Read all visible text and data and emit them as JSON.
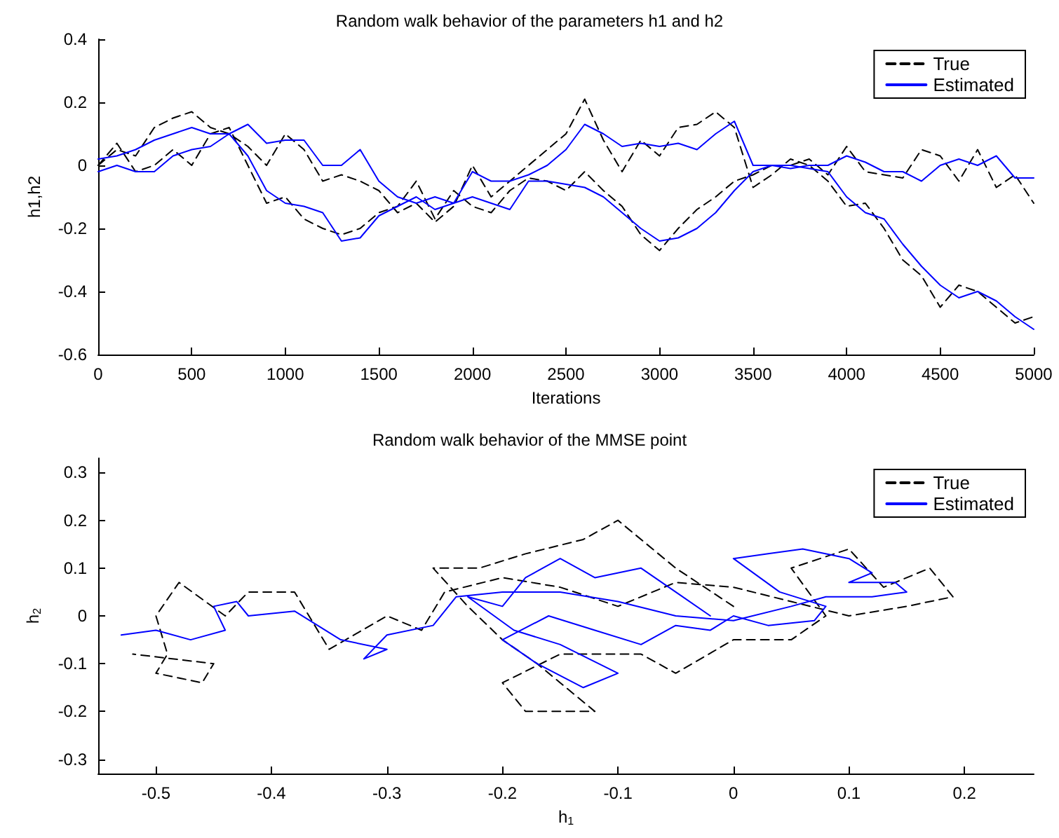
{
  "chart_data": [
    {
      "type": "line",
      "title": "Random walk behavior of the parameters h1 and h2",
      "xlabel": "Iterations",
      "ylabel": "h1,h2",
      "xlim": [
        0,
        5000
      ],
      "xticks": [
        0,
        500,
        1000,
        1500,
        2000,
        2500,
        3000,
        3500,
        4000,
        4500,
        5000
      ],
      "ylim": [
        -0.6,
        0.4
      ],
      "yticks": [
        -0.6,
        -0.4,
        -0.2,
        0,
        0.2,
        0.4
      ],
      "grid": false,
      "legend": "top right",
      "marker": "none",
      "x": [
        0,
        100,
        200,
        300,
        400,
        500,
        600,
        700,
        800,
        900,
        1000,
        1100,
        1200,
        1300,
        1400,
        1500,
        1600,
        1700,
        1800,
        1900,
        2000,
        2100,
        2200,
        2300,
        2400,
        2500,
        2600,
        2700,
        2800,
        2900,
        3000,
        3100,
        3200,
        3300,
        3400,
        3500,
        3600,
        3700,
        3800,
        3900,
        4000,
        4100,
        4200,
        4300,
        4400,
        4500,
        4600,
        4700,
        4800,
        4900,
        5000
      ],
      "series": [
        {
          "name": "True",
          "color": "#000000",
          "line_style": "dashed",
          "values": [
            0.0,
            0.05,
            0.03,
            0.12,
            0.15,
            0.17,
            0.12,
            0.1,
            0.06,
            0.0,
            0.1,
            0.05,
            -0.05,
            -0.03,
            -0.05,
            -0.08,
            -0.15,
            -0.12,
            -0.18,
            -0.13,
            0.0,
            -0.1,
            -0.05,
            0.0,
            0.05,
            0.1,
            0.21,
            0.08,
            -0.02,
            0.08,
            0.03,
            0.12,
            0.13,
            0.17,
            0.12,
            -0.07,
            -0.03,
            0.02,
            0.0,
            -0.05,
            -0.13,
            -0.12,
            -0.2,
            -0.3,
            -0.35,
            -0.45,
            -0.38,
            -0.4,
            -0.45,
            -0.5,
            -0.48
          ]
        },
        {
          "color": "#000000",
          "line_style": "dashed",
          "values": [
            0.0,
            0.07,
            -0.02,
            0.0,
            0.05,
            0.0,
            0.1,
            0.12,
            0.0,
            -0.12,
            -0.1,
            -0.17,
            -0.2,
            -0.22,
            -0.2,
            -0.15,
            -0.13,
            -0.05,
            -0.17,
            -0.08,
            -0.13,
            -0.15,
            -0.08,
            -0.04,
            -0.05,
            -0.08,
            -0.02,
            -0.08,
            -0.13,
            -0.22,
            -0.27,
            -0.2,
            -0.14,
            -0.1,
            -0.05,
            -0.03,
            0.0,
            0.0,
            0.02,
            -0.03,
            0.06,
            -0.02,
            -0.03,
            -0.04,
            0.05,
            0.03,
            -0.05,
            0.05,
            -0.07,
            -0.03,
            -0.12
          ]
        },
        {
          "name": "Estimated",
          "color": "#0000ff",
          "line_style": "solid",
          "values": [
            0.02,
            0.03,
            0.05,
            0.08,
            0.1,
            0.12,
            0.1,
            0.1,
            0.13,
            0.07,
            0.08,
            0.08,
            0.0,
            0.0,
            0.05,
            -0.05,
            -0.1,
            -0.12,
            -0.1,
            -0.12,
            -0.02,
            -0.05,
            -0.05,
            -0.03,
            0.0,
            0.05,
            0.13,
            0.1,
            0.06,
            0.07,
            0.06,
            0.07,
            0.05,
            0.1,
            0.14,
            0.0,
            0.0,
            0.0,
            -0.01,
            -0.02,
            -0.1,
            -0.15,
            -0.17,
            -0.25,
            -0.32,
            -0.38,
            -0.42,
            -0.4,
            -0.43,
            -0.48,
            -0.52
          ]
        },
        {
          "color": "#0000ff",
          "line_style": "solid",
          "values": [
            -0.02,
            0.0,
            -0.02,
            -0.02,
            0.03,
            0.05,
            0.06,
            0.1,
            0.03,
            -0.08,
            -0.12,
            -0.13,
            -0.15,
            -0.24,
            -0.23,
            -0.16,
            -0.13,
            -0.1,
            -0.14,
            -0.12,
            -0.1,
            -0.12,
            -0.14,
            -0.05,
            -0.05,
            -0.06,
            -0.07,
            -0.1,
            -0.15,
            -0.2,
            -0.24,
            -0.23,
            -0.2,
            -0.15,
            -0.08,
            -0.02,
            0.0,
            -0.01,
            0.0,
            0.0,
            0.03,
            0.01,
            -0.02,
            -0.02,
            -0.05,
            0.0,
            0.02,
            0.0,
            0.03,
            -0.04,
            -0.04
          ]
        }
      ]
    },
    {
      "type": "line",
      "title": "Random walk behavior of the MMSE point",
      "xlabel": "h$_{1}$",
      "ylabel": "h$_{2}$",
      "xlim": [
        -0.55,
        0.26
      ],
      "xticks": [
        -0.5,
        -0.4,
        -0.3,
        -0.2,
        -0.1,
        0,
        0.1,
        0.2
      ],
      "ylim": [
        -0.33,
        0.33
      ],
      "yticks": [
        -0.3,
        -0.2,
        -0.1,
        0,
        0.1,
        0.2,
        0.3
      ],
      "grid": false,
      "legend": "top right",
      "marker": "none",
      "series": [
        {
          "name": "True",
          "color": "#000000",
          "line_style": "dashed",
          "x": [
            0,
            -0.05,
            -0.1,
            -0.13,
            -0.18,
            -0.22,
            -0.26,
            -0.23,
            -0.2,
            -0.17,
            -0.12,
            -0.18,
            -0.2,
            -0.15,
            -0.08,
            -0.05,
            0.0,
            0.05,
            0.08,
            0.05,
            0.1,
            0.13,
            0.17,
            0.19,
            0.15,
            0.1,
            0.05,
            0.0,
            -0.05,
            -0.1,
            -0.15,
            -0.2,
            -0.25,
            -0.27,
            -0.3,
            -0.35,
            -0.38,
            -0.42,
            -0.44,
            -0.48,
            -0.5,
            -0.49,
            -0.5,
            -0.46,
            -0.45,
            -0.52
          ],
          "values": [
            0.02,
            0.1,
            0.2,
            0.16,
            0.13,
            0.1,
            0.1,
            0.02,
            -0.05,
            -0.1,
            -0.2,
            -0.2,
            -0.14,
            -0.08,
            -0.08,
            -0.12,
            -0.05,
            -0.05,
            0.0,
            0.1,
            0.14,
            0.06,
            0.1,
            0.04,
            0.02,
            0.0,
            0.03,
            0.06,
            0.07,
            0.02,
            0.06,
            0.08,
            0.05,
            -0.03,
            0.0,
            -0.07,
            0.05,
            0.05,
            0.0,
            0.07,
            0.0,
            -0.08,
            -0.12,
            -0.14,
            -0.1,
            -0.08
          ]
        },
        {
          "name": "Estimated",
          "color": "#0000ff",
          "line_style": "solid",
          "x": [
            -0.02,
            -0.05,
            -0.08,
            -0.12,
            -0.15,
            -0.18,
            -0.2,
            -0.23,
            -0.19,
            -0.15,
            -0.1,
            -0.13,
            -0.17,
            -0.2,
            -0.16,
            -0.12,
            -0.08,
            -0.05,
            -0.02,
            0.0,
            0.03,
            0.07,
            0.08,
            0.04,
            0.0,
            0.03,
            0.06,
            0.1,
            0.12,
            0.1,
            0.14,
            0.15,
            0.12,
            0.08,
            0.05,
            0.0,
            -0.05,
            -0.1,
            -0.15,
            -0.2,
            -0.24,
            -0.26,
            -0.3,
            -0.32,
            -0.3,
            -0.34,
            -0.36,
            -0.38,
            -0.42,
            -0.43,
            -0.45,
            -0.44,
            -0.47,
            -0.5,
            -0.53
          ],
          "values": [
            0.0,
            0.05,
            0.1,
            0.08,
            0.12,
            0.08,
            0.02,
            0.04,
            -0.03,
            -0.06,
            -0.12,
            -0.15,
            -0.1,
            -0.05,
            0.0,
            -0.03,
            -0.06,
            -0.02,
            -0.03,
            0.0,
            -0.02,
            -0.01,
            0.02,
            0.05,
            0.12,
            0.13,
            0.14,
            0.12,
            0.09,
            0.07,
            0.07,
            0.05,
            0.04,
            0.04,
            0.02,
            -0.01,
            0.0,
            0.03,
            0.05,
            0.05,
            0.04,
            -0.02,
            -0.04,
            -0.09,
            -0.07,
            -0.05,
            -0.02,
            0.01,
            0.0,
            0.03,
            0.02,
            -0.03,
            -0.05,
            -0.03,
            -0.04
          ]
        }
      ]
    }
  ]
}
